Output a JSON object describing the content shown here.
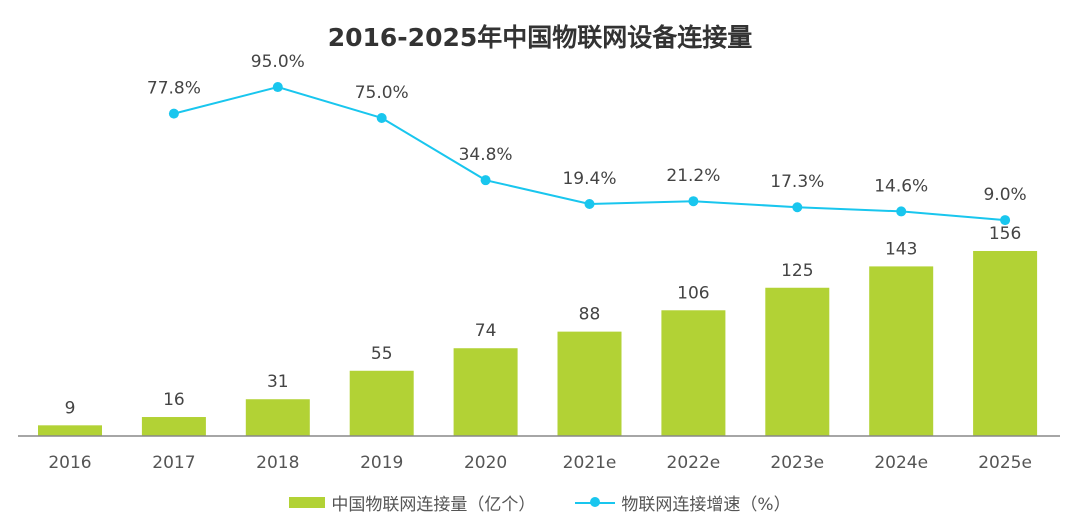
{
  "chart_data": {
    "type": "bar+line",
    "title": "2016-2025年中国物联网设备连接量",
    "categories": [
      "2016",
      "2017",
      "2018",
      "2019",
      "2020",
      "2021e",
      "2022e",
      "2023e",
      "2024e",
      "2025e"
    ],
    "series": [
      {
        "name": "中国物联网连接量（亿个）",
        "type": "bar",
        "color": "#b2d235",
        "values": [
          9,
          16,
          31,
          55,
          74,
          88,
          106,
          125,
          143,
          156
        ]
      },
      {
        "name": "物联网连接增速（%）",
        "type": "line",
        "color": "#19c6ee",
        "values": [
          null,
          77.8,
          95.0,
          75.0,
          34.8,
          19.4,
          21.2,
          17.3,
          14.6,
          9.0
        ]
      }
    ],
    "legend": "bottom",
    "grid": false
  }
}
